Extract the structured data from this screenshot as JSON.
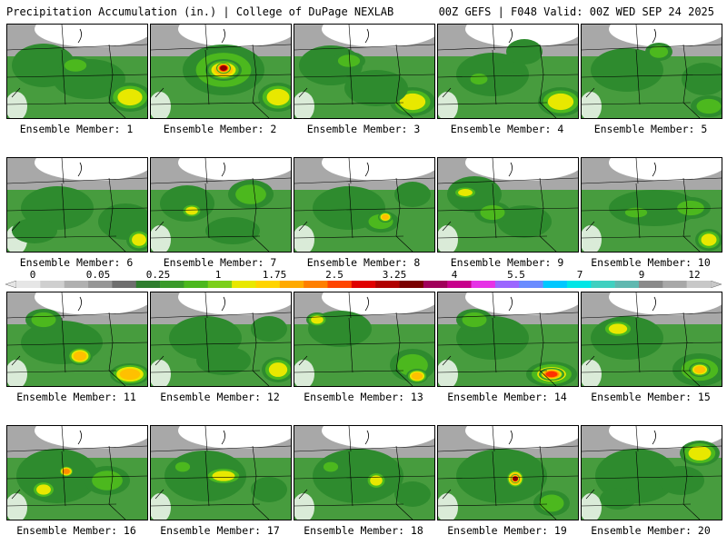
{
  "header": {
    "left": "Precipitation Accumulation (in.) | College of DuPage NEXLAB",
    "right": "00Z GEFS | F048 Valid: 00Z WED SEP 24 2025"
  },
  "colorbar": {
    "tick_labels": [
      "0",
      "0.05",
      "0.25",
      "1",
      "1.75",
      "2.5",
      "3.25",
      "4",
      "5.5",
      "7",
      "9",
      "12"
    ],
    "colors": [
      "#e6e6e6",
      "#cfcfcf",
      "#b0b0b0",
      "#969696",
      "#6e6e6e",
      "#2e7d2e",
      "#3a9a2a",
      "#4cb81e",
      "#7ccf1a",
      "#e8e800",
      "#ffd400",
      "#ffaa00",
      "#ff7f00",
      "#ff4500",
      "#e00000",
      "#b00000",
      "#7a0000",
      "#a0005a",
      "#c8008c",
      "#e632e6",
      "#9b66ff",
      "#6a8cff",
      "#00c8ff",
      "#00e6e6",
      "#40d0c0",
      "#60b8b0",
      "#8a8a8a",
      "#a8a8a8",
      "#c8c8c8"
    ]
  },
  "panels": [
    {
      "label": "Ensemble Member: 1",
      "blobs": [
        [
          40,
          45,
          35,
          24,
          3
        ],
        [
          90,
          60,
          40,
          22,
          3
        ],
        [
          135,
          80,
          24,
          16,
          5
        ],
        [
          75,
          45,
          18,
          10,
          4
        ]
      ]
    },
    {
      "label": "Ensemble Member: 2",
      "blobs": [
        [
          80,
          50,
          45,
          28,
          4
        ],
        [
          80,
          50,
          20,
          12,
          6
        ],
        [
          80,
          48,
          8,
          6,
          10
        ],
        [
          140,
          80,
          22,
          16,
          5
        ]
      ]
    },
    {
      "label": "Ensemble Member: 3",
      "blobs": [
        [
          40,
          45,
          35,
          22,
          3
        ],
        [
          60,
          40,
          18,
          10,
          4
        ],
        [
          130,
          85,
          25,
          16,
          5
        ],
        [
          90,
          70,
          35,
          20,
          3
        ]
      ]
    },
    {
      "label": "Ensemble Member: 4",
      "blobs": [
        [
          60,
          55,
          40,
          24,
          3
        ],
        [
          135,
          85,
          25,
          16,
          5
        ],
        [
          95,
          30,
          20,
          14,
          3
        ],
        [
          45,
          60,
          14,
          9,
          4
        ]
      ]
    },
    {
      "label": "Ensemble Member: 5",
      "blobs": [
        [
          50,
          50,
          40,
          24,
          3
        ],
        [
          85,
          30,
          15,
          10,
          4
        ],
        [
          135,
          60,
          25,
          18,
          3
        ],
        [
          140,
          90,
          20,
          12,
          4
        ]
      ]
    },
    {
      "label": "Ensemble Member: 6",
      "blobs": [
        [
          55,
          55,
          40,
          24,
          3
        ],
        [
          130,
          70,
          30,
          20,
          3
        ],
        [
          145,
          90,
          14,
          12,
          5
        ],
        [
          30,
          80,
          25,
          14,
          3
        ]
      ]
    },
    {
      "label": "Ensemble Member: 7",
      "blobs": [
        [
          40,
          50,
          30,
          20,
          3
        ],
        [
          110,
          40,
          25,
          16,
          4
        ],
        [
          45,
          58,
          12,
          8,
          5
        ],
        [
          90,
          80,
          30,
          15,
          3
        ]
      ]
    },
    {
      "label": "Ensemble Member: 8",
      "blobs": [
        [
          60,
          55,
          40,
          24,
          3
        ],
        [
          95,
          70,
          20,
          12,
          4
        ],
        [
          100,
          65,
          8,
          6,
          6
        ],
        [
          130,
          40,
          20,
          14,
          3
        ]
      ]
    },
    {
      "label": "Ensemble Member: 9",
      "blobs": [
        [
          40,
          40,
          30,
          20,
          3
        ],
        [
          30,
          38,
          14,
          7,
          5
        ],
        [
          95,
          70,
          30,
          18,
          3
        ],
        [
          60,
          60,
          20,
          12,
          4
        ]
      ]
    },
    {
      "label": "Ensemble Member: 10",
      "blobs": [
        [
          80,
          55,
          50,
          20,
          3
        ],
        [
          60,
          60,
          18,
          8,
          4
        ],
        [
          120,
          55,
          22,
          12,
          4
        ],
        [
          140,
          90,
          15,
          12,
          5
        ]
      ]
    },
    {
      "label": "Ensemble Member: 11",
      "blobs": [
        [
          60,
          55,
          45,
          24,
          3
        ],
        [
          80,
          70,
          14,
          10,
          6
        ],
        [
          135,
          90,
          22,
          12,
          6
        ],
        [
          40,
          30,
          20,
          12,
          4
        ]
      ]
    },
    {
      "label": "Ensemble Member: 12",
      "blobs": [
        [
          60,
          50,
          40,
          24,
          3
        ],
        [
          140,
          85,
          18,
          14,
          5
        ],
        [
          80,
          75,
          30,
          16,
          3
        ],
        [
          130,
          40,
          20,
          14,
          3
        ]
      ]
    },
    {
      "label": "Ensemble Member: 13",
      "blobs": [
        [
          50,
          40,
          35,
          20,
          3
        ],
        [
          25,
          30,
          12,
          8,
          5
        ],
        [
          130,
          80,
          25,
          18,
          4
        ],
        [
          135,
          92,
          12,
          8,
          6
        ]
      ]
    },
    {
      "label": "Ensemble Member: 14",
      "blobs": [
        [
          60,
          50,
          40,
          24,
          3
        ],
        [
          125,
          90,
          28,
          14,
          5
        ],
        [
          125,
          90,
          14,
          7,
          8
        ],
        [
          40,
          30,
          20,
          12,
          4
        ]
      ]
    },
    {
      "label": "Ensemble Member: 15",
      "blobs": [
        [
          50,
          50,
          40,
          24,
          3
        ],
        [
          40,
          40,
          18,
          10,
          5
        ],
        [
          130,
          85,
          30,
          18,
          4
        ],
        [
          130,
          85,
          12,
          8,
          6
        ]
      ]
    },
    {
      "label": "Ensemble Member: 16",
      "blobs": [
        [
          55,
          55,
          45,
          30,
          3
        ],
        [
          65,
          50,
          8,
          6,
          7
        ],
        [
          110,
          60,
          25,
          16,
          4
        ],
        [
          40,
          70,
          14,
          10,
          5
        ]
      ]
    },
    {
      "label": "Ensemble Member: 17",
      "blobs": [
        [
          60,
          55,
          45,
          28,
          3
        ],
        [
          80,
          55,
          22,
          10,
          5
        ],
        [
          35,
          45,
          12,
          8,
          4
        ],
        [
          130,
          70,
          20,
          14,
          3
        ]
      ]
    },
    {
      "label": "Ensemble Member: 18",
      "blobs": [
        [
          70,
          55,
          50,
          30,
          3
        ],
        [
          90,
          60,
          12,
          10,
          5
        ],
        [
          40,
          45,
          12,
          8,
          4
        ],
        [
          130,
          75,
          20,
          14,
          3
        ]
      ]
    },
    {
      "label": "Ensemble Member: 19",
      "blobs": [
        [
          70,
          55,
          50,
          30,
          3
        ],
        [
          85,
          58,
          10,
          10,
          7
        ],
        [
          85,
          58,
          5,
          5,
          10
        ],
        [
          125,
          85,
          20,
          14,
          4
        ]
      ]
    },
    {
      "label": "Ensemble Member: 20",
      "blobs": [
        [
          60,
          55,
          45,
          30,
          3
        ],
        [
          130,
          30,
          22,
          14,
          5
        ],
        [
          110,
          60,
          25,
          16,
          3
        ],
        [
          40,
          80,
          20,
          12,
          3
        ]
      ]
    }
  ]
}
